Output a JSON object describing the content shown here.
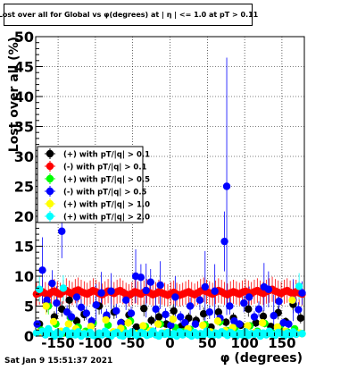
{
  "title": "Lost over all for Global vs φ(degrees) at | η | <= 1.0 at pT > 0.11",
  "footer": "Sat Jan  9 15:51:37 2021",
  "chart_data": {
    "type": "scatter",
    "xlabel": "φ (degrees)",
    "ylabel": "Lost over all (%)",
    "xlim": [
      -180,
      180
    ],
    "ylim": [
      0,
      50
    ],
    "xticks": [
      "-150",
      "-100",
      "-50",
      "0",
      "50",
      "100",
      "150"
    ],
    "xtick_values": [
      -150,
      -100,
      -50,
      0,
      50,
      100,
      150
    ],
    "yticks": [
      "0",
      "5",
      "10",
      "15",
      "20",
      "25",
      "30",
      "35",
      "40",
      "45",
      "50"
    ],
    "ytick_values": [
      0,
      5,
      10,
      15,
      20,
      25,
      30,
      35,
      40,
      45,
      50
    ],
    "grid": true,
    "legend_position": "left",
    "series": [
      {
        "name": "(+) with pT/|q| > 0.1",
        "color": "#000000",
        "x": [
          -175,
          -165,
          -155,
          -145,
          -135,
          -125,
          -115,
          -105,
          -95,
          -85,
          -75,
          -65,
          -55,
          -45,
          -35,
          -25,
          -15,
          -5,
          5,
          15,
          25,
          35,
          45,
          55,
          65,
          75,
          85,
          95,
          105,
          115,
          125,
          135,
          145,
          155,
          165,
          175
        ],
        "y": [
          2.0,
          5.5,
          3.2,
          4.5,
          6.0,
          2.5,
          3.6,
          1.8,
          5.0,
          3.2,
          4.0,
          2.2,
          3.5,
          1.5,
          4.6,
          2.6,
          3.2,
          2.0,
          4.2,
          1.6,
          3.0,
          2.6,
          3.7,
          1.5,
          4.0,
          2.3,
          3.0,
          1.8,
          4.5,
          2.2,
          3.3,
          1.6,
          3.9,
          2.4,
          5.3,
          3.0
        ]
      },
      {
        "name": "(-) with pT/|q| > 0.1",
        "color": "#ff0000",
        "x": [
          -179,
          -175,
          -171,
          -167,
          -163,
          -159,
          -155,
          -151,
          -147,
          -143,
          -139,
          -135,
          -131,
          -127,
          -123,
          -119,
          -115,
          -111,
          -107,
          -103,
          -99,
          -95,
          -91,
          -87,
          -83,
          -79,
          -75,
          -71,
          -67,
          -63,
          -59,
          -55,
          -51,
          -47,
          -43,
          -39,
          -35,
          -31,
          -27,
          -23,
          -19,
          -15,
          -11,
          -7,
          -3,
          1,
          5,
          9,
          13,
          17,
          21,
          25,
          29,
          33,
          37,
          41,
          45,
          49,
          53,
          57,
          61,
          65,
          69,
          73,
          77,
          81,
          85,
          89,
          93,
          97,
          101,
          105,
          109,
          113,
          117,
          121,
          125,
          129,
          133,
          137,
          141,
          145,
          149,
          153,
          157,
          161,
          165,
          169,
          173,
          177
        ],
        "y": [
          7.0,
          7.2,
          7.4,
          7.1,
          6.9,
          7.3,
          7.5,
          7.2,
          7.0,
          7.4,
          7.6,
          7.3,
          7.1,
          7.5,
          7.7,
          7.4,
          7.2,
          7.0,
          7.3,
          7.6,
          7.4,
          7.1,
          6.9,
          7.2,
          7.5,
          7.3,
          7.1,
          7.4,
          7.6,
          7.3,
          7.0,
          6.8,
          7.1,
          7.4,
          7.2,
          7.0,
          7.3,
          7.5,
          7.2,
          6.9,
          7.1,
          7.4,
          7.2,
          7.0,
          6.8,
          7.1,
          7.3,
          7.0,
          6.8,
          7.0,
          7.2,
          7.4,
          7.1,
          6.9,
          7.2,
          7.5,
          7.7,
          7.4,
          7.2,
          7.0,
          7.3,
          7.6,
          7.4,
          7.1,
          6.9,
          7.2,
          7.4,
          7.2,
          7.0,
          7.3,
          7.5,
          7.3,
          7.1,
          7.4,
          7.6,
          7.3,
          7.1,
          7.4,
          7.6,
          7.8,
          7.5,
          7.3,
          7.1,
          7.4,
          7.6,
          7.3,
          7.1,
          7.4,
          7.2,
          7.0
        ]
      },
      {
        "name": "(+) with pT/|q| > 0.5",
        "color": "#00ff00",
        "x": [
          -173,
          -163,
          -153,
          -143,
          -133,
          -123,
          -113,
          -103,
          -93,
          -83,
          -73,
          -63,
          -53,
          -43,
          -33,
          -23,
          -13,
          -3,
          7,
          17,
          27,
          37,
          47,
          57,
          67,
          77,
          87,
          97,
          107,
          117,
          127,
          137,
          147,
          157,
          167,
          177
        ],
        "y": [
          1.0,
          5.0,
          2.0,
          0.5,
          3.0,
          1.5,
          0.8,
          2.2,
          0.3,
          1.8,
          0.6,
          1.2,
          2.5,
          0.4,
          1.6,
          0.8,
          2.0,
          0.5,
          1.4,
          0.7,
          1.1,
          0.3,
          1.9,
          0.6,
          2.4,
          0.9,
          1.3,
          0.4,
          1.7,
          0.8,
          2.1,
          0.5,
          1.5,
          0.7,
          1.2,
          0.4
        ]
      },
      {
        "name": "(-) with pT/|q| > 0.5",
        "color": "#0000ff",
        "x": [
          -178,
          -171,
          -165,
          -158,
          -152,
          -145,
          -138,
          -132,
          -125,
          -119,
          -112,
          -105,
          -99,
          -92,
          -85,
          -79,
          -72,
          -66,
          -59,
          -52,
          -46,
          -39,
          -32,
          -26,
          -19,
          -13,
          -6,
          1,
          7,
          14,
          20,
          27,
          34,
          40,
          47,
          53,
          60,
          67,
          73,
          76,
          80,
          86,
          93,
          99,
          106,
          113,
          119,
          126,
          132,
          139,
          146,
          152,
          159,
          165,
          172,
          177
        ],
        "y": [
          2.0,
          11.0,
          6.0,
          8.8,
          5.5,
          17.5,
          4.0,
          3.2,
          6.5,
          4.8,
          3.8,
          2.5,
          5.2,
          7.2,
          3.5,
          7.5,
          4.2,
          2.2,
          6.0,
          3.8,
          10.0,
          9.8,
          7.6,
          9.0,
          4.5,
          8.5,
          3.6,
          1.8,
          6.5,
          3.2,
          2.2,
          5.0,
          2.0,
          6.0,
          8.2,
          4.0,
          7.5,
          3.0,
          15.8,
          25.0,
          5.0,
          2.5,
          2.0,
          5.5,
          6.5,
          3.2,
          4.5,
          8.2,
          7.8,
          3.4,
          5.8,
          2.2,
          2.0,
          6.0,
          4.4,
          7.2
        ]
      },
      {
        "name": "(+) with pT/|q| > 1.0",
        "color": "#ffff00",
        "x": [
          -176,
          -166,
          -156,
          -146,
          -136,
          -126,
          -116,
          -106,
          -96,
          -86,
          -76,
          -66,
          -56,
          -46,
          -36,
          -26,
          -16,
          -6,
          4,
          14,
          24,
          34,
          44,
          54,
          64,
          74,
          84,
          94,
          104,
          114,
          124,
          134,
          144,
          154,
          164,
          174
        ],
        "y": [
          0.6,
          5.0,
          2.4,
          0.8,
          2.0,
          1.2,
          0.5,
          1.6,
          0.3,
          2.7,
          0.7,
          1.3,
          2.2,
          0.4,
          1.7,
          0.9,
          2.0,
          0.6,
          2.8,
          0.5,
          1.2,
          0.3,
          1.8,
          0.7,
          2.5,
          0.9,
          1.4,
          0.4,
          1.7,
          0.6,
          2.2,
          0.4,
          1.5,
          0.8,
          6.0,
          0.5
        ]
      },
      {
        "name": "(+) with pT/|q| > 2.0",
        "color": "#00ffff",
        "x": [
          -179,
          -175,
          -171,
          -167,
          -163,
          -159,
          -155,
          -151,
          -147,
          -143,
          -139,
          -135,
          -131,
          -127,
          -123,
          -119,
          -115,
          -111,
          -107,
          -103,
          -99,
          -95,
          -91,
          -87,
          -83,
          -79,
          -75,
          -71,
          -67,
          -63,
          -59,
          -55,
          -51,
          -47,
          -43,
          -39,
          -35,
          -31,
          -27,
          -23,
          -19,
          -15,
          -11,
          -7,
          -3,
          1,
          5,
          9,
          13,
          17,
          21,
          25,
          29,
          33,
          37,
          41,
          45,
          49,
          53,
          57,
          61,
          65,
          69,
          73,
          77,
          81,
          85,
          89,
          93,
          97,
          101,
          105,
          109,
          113,
          117,
          121,
          125,
          129,
          133,
          137,
          141,
          145,
          149,
          153,
          157,
          161,
          165,
          169,
          173,
          177
        ],
        "y": [
          0.5,
          7.8,
          0.8,
          0.2,
          1.2,
          0.4,
          0.0,
          0.6,
          0.3,
          8.0,
          0.9,
          0.1,
          0.5,
          0.2,
          0.7,
          0.0,
          0.4,
          0.3,
          0.6,
          0.1,
          0.0,
          0.5,
          0.2,
          0.8,
          0.3,
          0.0,
          0.4,
          0.6,
          0.1,
          0.0,
          0.5,
          0.3,
          0.7,
          0.2,
          0.0,
          0.6,
          0.4,
          0.1,
          0.3,
          0.8,
          0.2,
          0.0,
          0.5,
          0.3,
          0.6,
          0.1,
          0.4,
          0.0,
          0.7,
          0.2,
          0.5,
          0.3,
          0.0,
          0.6,
          0.1,
          0.4,
          0.2,
          0.8,
          0.3,
          0.0,
          0.5,
          0.2,
          0.7,
          0.4,
          0.1,
          0.6,
          0.3,
          0.0,
          0.5,
          0.2,
          0.7,
          0.1,
          0.4,
          0.3,
          0.6,
          0.0,
          0.5,
          0.2,
          0.8,
          0.3,
          0.1,
          0.6,
          0.4,
          0.0,
          0.5,
          0.2,
          0.7,
          0.3,
          8.3,
          0.4
        ]
      }
    ],
    "errors": {
      "(-) with pT/|q| > 0.5": {
        "76": 21.5,
        "73": 5.0,
        "-145": 4.5,
        "-152": 2.8,
        "-171": 5.5,
        "-32": 4.5,
        "-46": 4.5,
        "-13": 4.0,
        "47": 6.0,
        "60": 4.5,
        "126": 4.0,
        "139": 3.5,
        "165": 3.5,
        "132": 3.0,
        "-99": 3.5,
        "-92": 3.5,
        "-79": 3.0,
        "-19": 3.5,
        "7": 3.5
      }
    }
  }
}
